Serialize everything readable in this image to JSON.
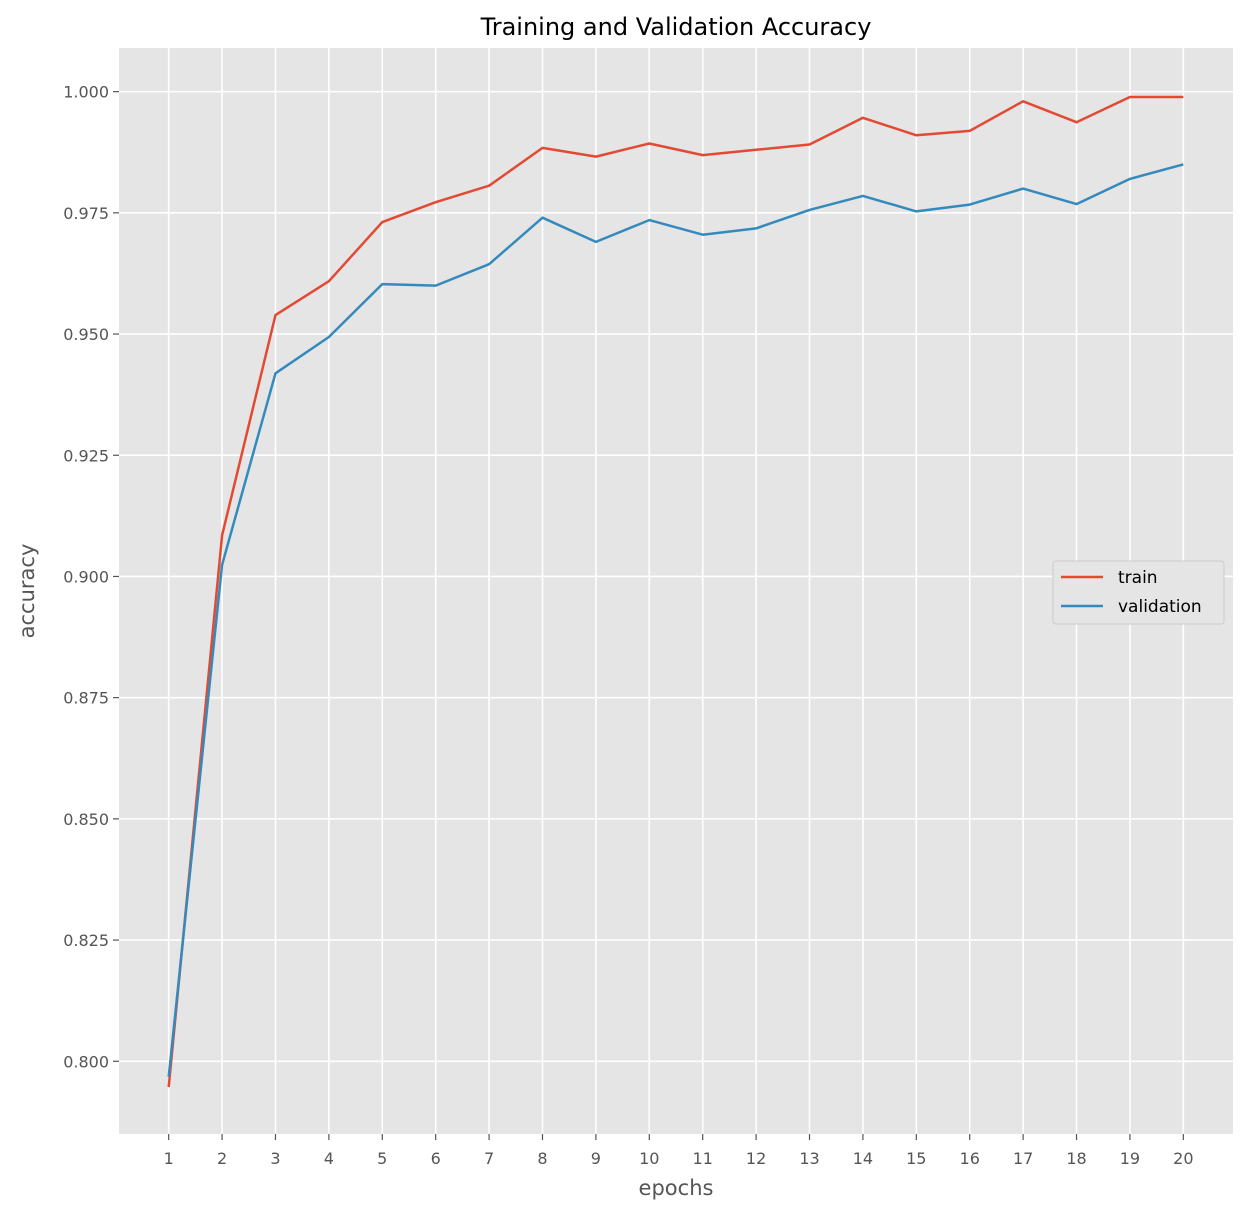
{
  "chart_data": {
    "type": "line",
    "title": "Training and Validation Accuracy",
    "xlabel": "epochs",
    "ylabel": "accuracy",
    "x": [
      1,
      2,
      3,
      4,
      5,
      6,
      7,
      8,
      9,
      10,
      11,
      12,
      13,
      14,
      15,
      16,
      17,
      18,
      19,
      20
    ],
    "x_ticks": [
      "1",
      "2",
      "3",
      "4",
      "5",
      "6",
      "7",
      "8",
      "9",
      "10",
      "11",
      "12",
      "13",
      "14",
      "15",
      "16",
      "17",
      "18",
      "19",
      "20"
    ],
    "xlim": [
      0.07,
      20.93
    ],
    "ylim": [
      0.785,
      1.009
    ],
    "y_ticks": [
      "0.800",
      "0.825",
      "0.850",
      "0.875",
      "0.900",
      "0.925",
      "0.950",
      "0.975",
      "1.000"
    ],
    "grid": true,
    "legend_position": "center-right",
    "series": [
      {
        "name": "train",
        "color": "#E24A33",
        "values": [
          0.7947,
          0.9085,
          0.9539,
          0.9609,
          0.9731,
          0.9772,
          0.9806,
          0.9884,
          0.9866,
          0.9893,
          0.9869,
          0.988,
          0.9891,
          0.9946,
          0.991,
          0.9919,
          0.998,
          0.9937,
          0.9989,
          0.9989
        ]
      },
      {
        "name": "validation",
        "color": "#348ABD",
        "values": [
          0.7968,
          0.9024,
          0.9419,
          0.9494,
          0.9603,
          0.96,
          0.9644,
          0.974,
          0.969,
          0.9735,
          0.9705,
          0.9718,
          0.9756,
          0.9785,
          0.9753,
          0.9767,
          0.98,
          0.9768,
          0.982,
          0.985
        ]
      }
    ]
  }
}
